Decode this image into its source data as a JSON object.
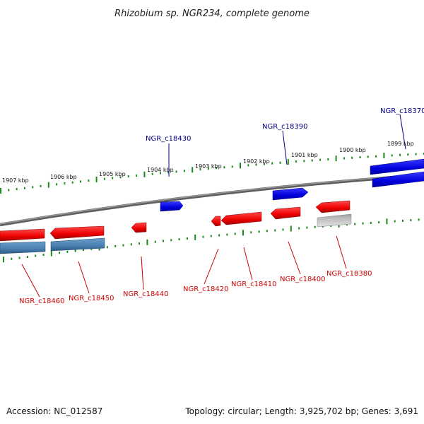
{
  "title": "Rhizobium sp. NGR234, complete genome",
  "footer": {
    "accession": "Accession: NC_012587",
    "summary": "Topology: circular; Length: 3,925,702 bp; Genes: 3,691"
  },
  "ruler_labels": [
    "1907 kbp",
    "1906 kbp",
    "1905 kbp",
    "1904 kbp",
    "1903 kbp",
    "1902 kbp",
    "1901 kbp",
    "1900 kbp",
    "1899 kbp"
  ],
  "genes": [
    {
      "label": "NGR_c18370",
      "strand": "+"
    },
    {
      "label": "NGR_c18380",
      "strand": "-"
    },
    {
      "label": "NGR_c18390",
      "strand": "+"
    },
    {
      "label": "NGR_c18400",
      "strand": "-"
    },
    {
      "label": "NGR_c18410",
      "strand": "-"
    },
    {
      "label": "NGR_c18420",
      "strand": "-"
    },
    {
      "label": "NGR_c18430",
      "strand": "+"
    },
    {
      "label": "NGR_c18440",
      "strand": "-"
    },
    {
      "label": "NGR_c18450",
      "strand": "-"
    },
    {
      "label": "NGR_c18460",
      "strand": "-"
    }
  ],
  "colors": {
    "forward_gene": "#0000ee",
    "reverse_gene": "#ee0000",
    "forward_label": "#000080",
    "reverse_label": "#cc0000",
    "cds_feature": "#4a7fb0",
    "pseudo_feature": "#bbbbbb",
    "tick": "#1a8a1a",
    "backbone": "#777777"
  }
}
